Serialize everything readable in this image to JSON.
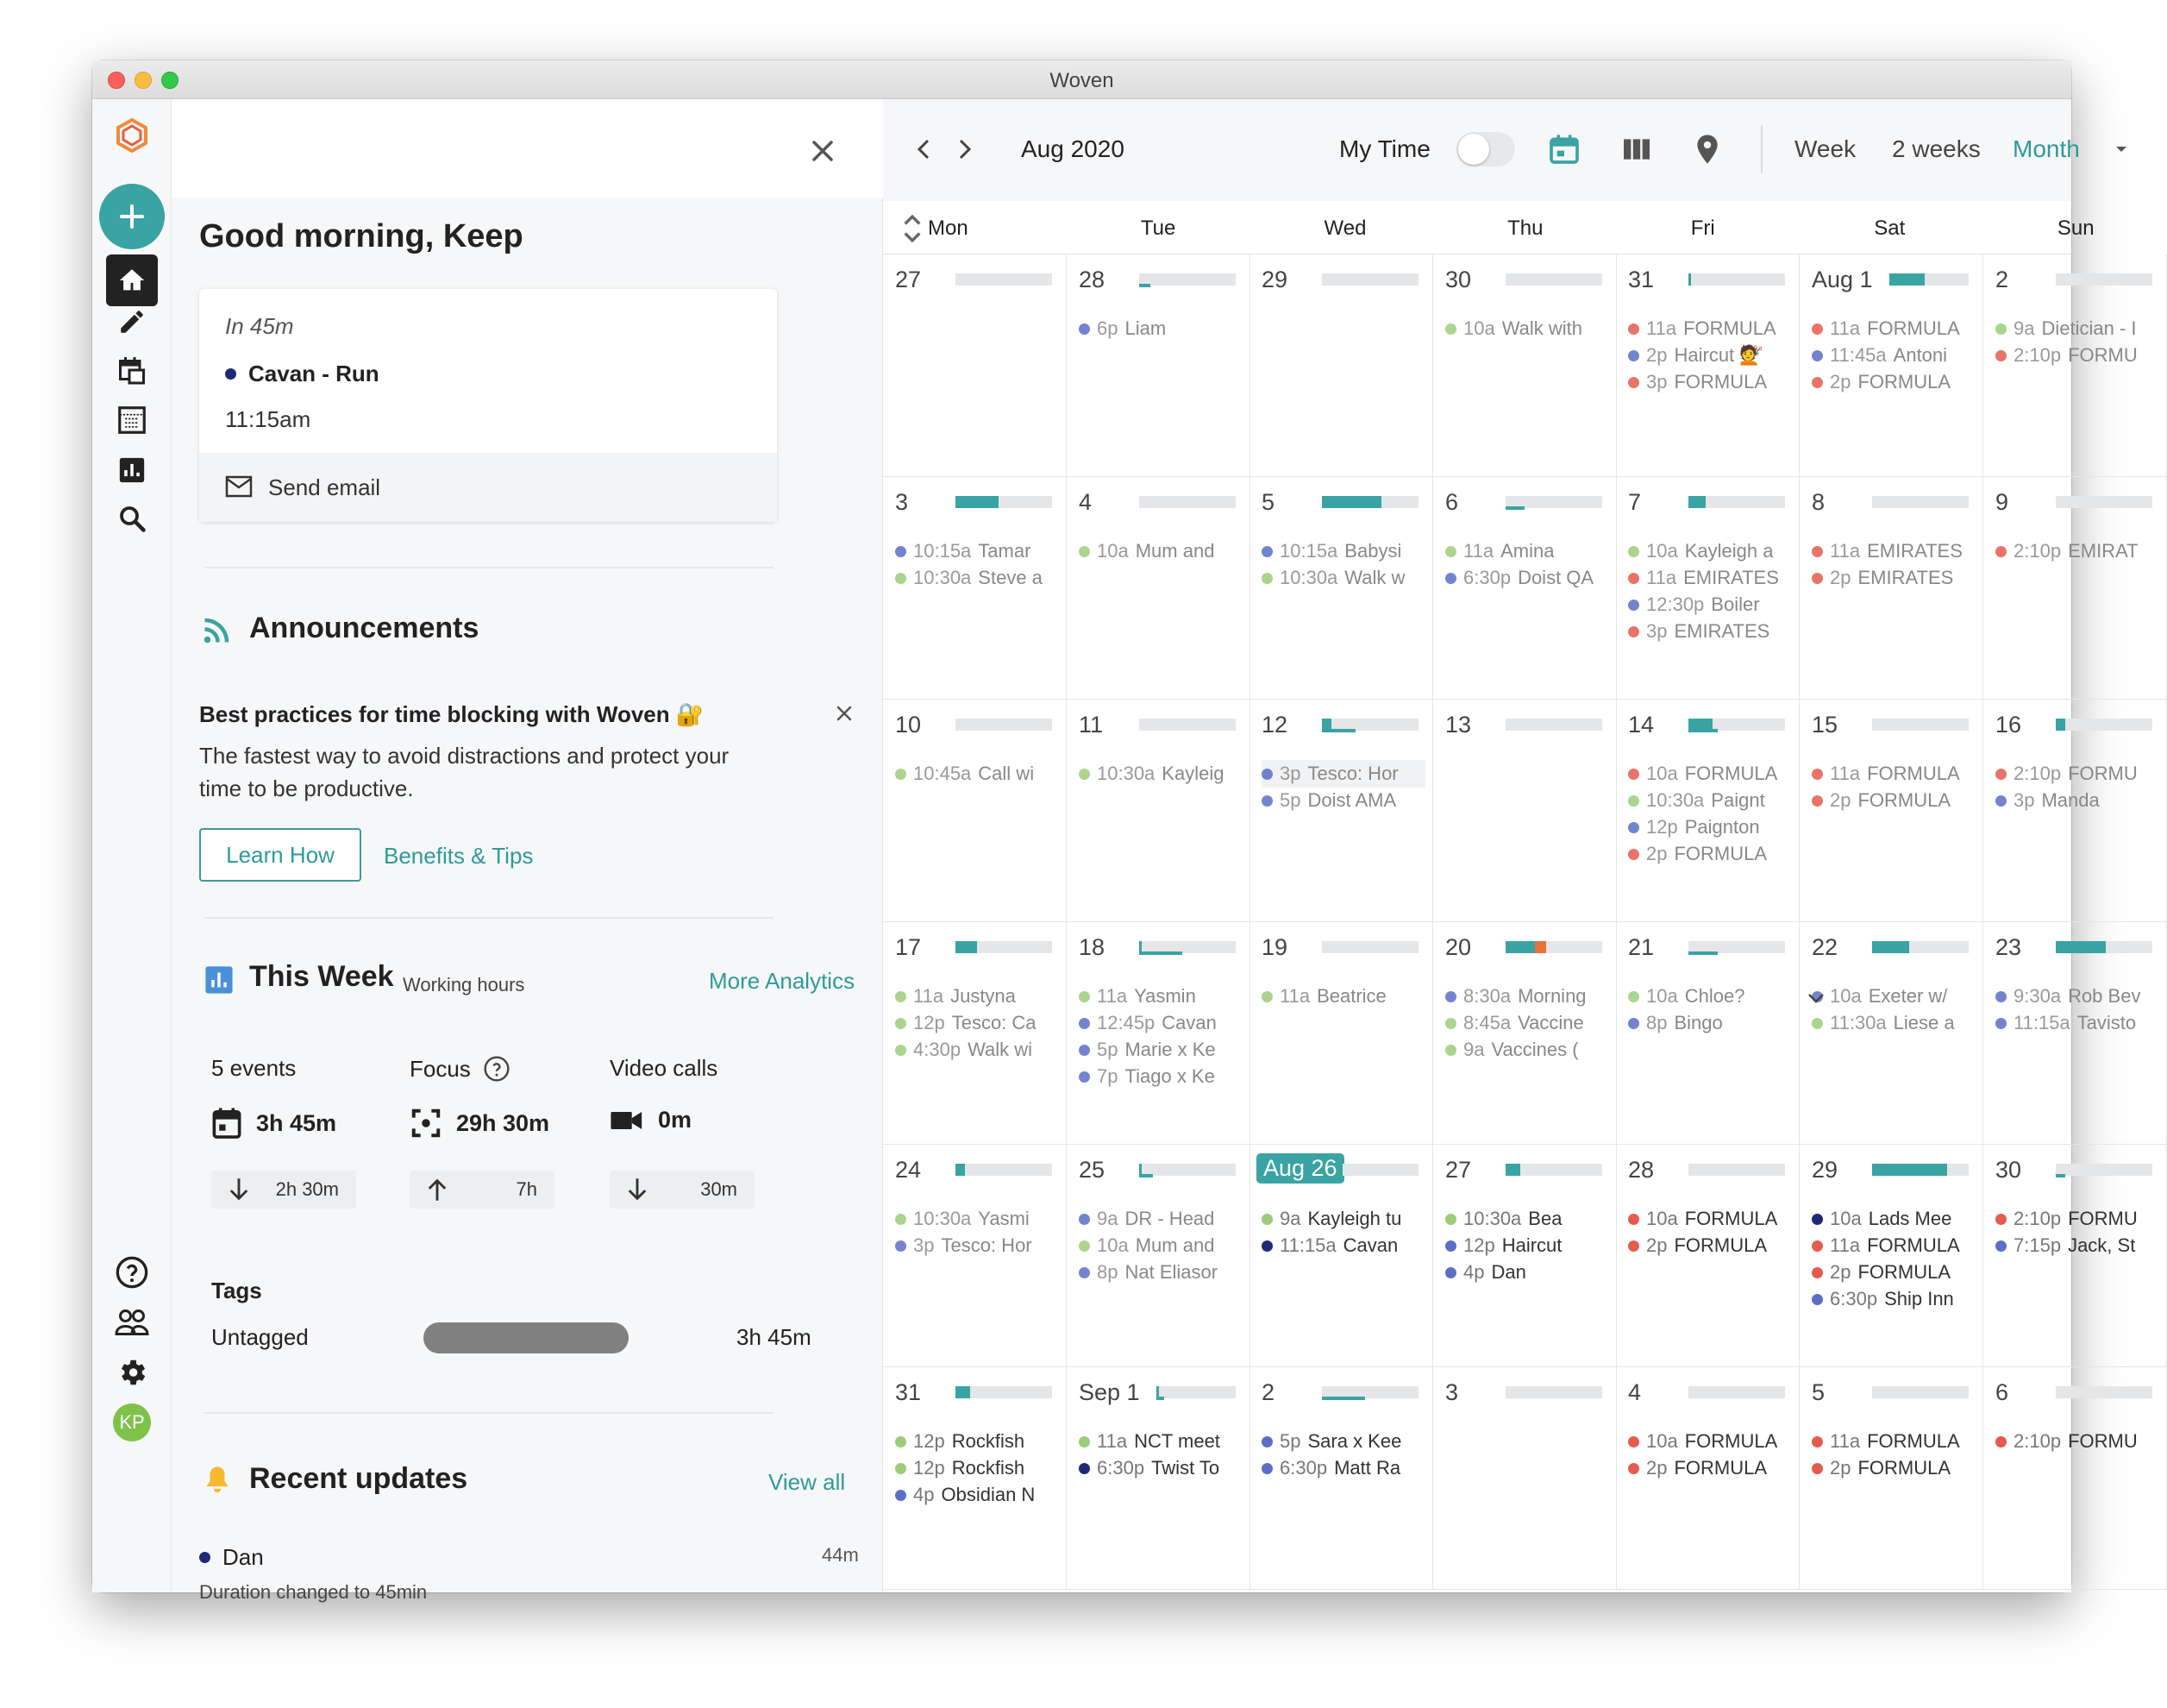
{
  "window": {
    "title": "Woven"
  },
  "colors": {
    "accent": "#3aa3a3",
    "green": "#9ccc7a",
    "blue": "#5b6fc6",
    "red": "#e55b4d",
    "navy": "#1e2a78"
  },
  "greeting": "Good morning, Keep",
  "next_event": {
    "in_label": "In 45m",
    "title": "Cavan - Run",
    "time": "11:15am",
    "action": "Send email"
  },
  "announcements": {
    "title": "Announcements",
    "headline": "Best practices for time blocking with Woven 🔐",
    "body": "The fastest way to avoid distractions and protect your time to be productive.",
    "learn_label": "Learn How",
    "tips_label": "Benefits & Tips"
  },
  "this_week": {
    "title": "This Week",
    "subtitle": "Working hours",
    "more_label": "More Analytics",
    "stats": [
      {
        "label": "5 events",
        "value": "3h 45m",
        "delta": "2h 30m",
        "dir": "down"
      },
      {
        "label": "Focus",
        "value": "29h 30m",
        "delta": "7h",
        "dir": "up"
      },
      {
        "label": "Video calls",
        "value": "0m",
        "delta": "30m",
        "dir": "down"
      }
    ],
    "tags_title": "Tags",
    "tag": {
      "name": "Untagged",
      "value": "3h 45m",
      "fraction": 1.0
    }
  },
  "recent_updates": {
    "title": "Recent updates",
    "view_all": "View all",
    "items": [
      {
        "name": "Dan",
        "time": "44m",
        "desc": "Duration changed to 45min"
      }
    ]
  },
  "calendar": {
    "month_label": "Aug 2020",
    "my_time_label": "My Time",
    "views": [
      "Week",
      "2 weeks",
      "Month"
    ],
    "active_view": "Month",
    "weekdays": [
      "Mon",
      "Tue",
      "Wed",
      "Thu",
      "Fri",
      "Sat",
      "Sun"
    ],
    "weeks": [
      [
        {
          "date": "27",
          "fill": 0,
          "events": []
        },
        {
          "date": "28",
          "fill": 0,
          "line": 0.12,
          "events": [
            {
              "c": "blue",
              "t": "6p",
              "x": "Liam",
              "f": true
            }
          ]
        },
        {
          "date": "29",
          "fill": 0,
          "events": []
        },
        {
          "date": "30",
          "fill": 0,
          "events": [
            {
              "c": "green",
              "t": "10a",
              "x": "Walk with",
              "f": true
            }
          ]
        },
        {
          "date": "31",
          "fill": 0.03,
          "events": [
            {
              "c": "red",
              "t": "11a",
              "x": "FORMULA",
              "f": true
            },
            {
              "c": "blue",
              "t": "2p",
              "x": "Haircut 💇",
              "f": true
            },
            {
              "c": "red",
              "t": "3p",
              "x": "FORMULA",
              "f": true
            }
          ]
        },
        {
          "date": "Aug 1",
          "fill": 0.45,
          "events": [
            {
              "c": "red",
              "t": "11a",
              "x": "FORMULA",
              "f": true
            },
            {
              "c": "blue",
              "t": "11:45a",
              "x": "Antoni",
              "f": true
            },
            {
              "c": "red",
              "t": "2p",
              "x": "FORMULA",
              "f": true
            }
          ]
        },
        {
          "date": "2",
          "fill": 0,
          "events": [
            {
              "c": "green",
              "t": "9a",
              "x": "Dietician - I",
              "f": true
            },
            {
              "c": "red",
              "t": "2:10p",
              "x": "FORMU",
              "f": true
            }
          ]
        }
      ],
      [
        {
          "date": "3",
          "fill": 0.45,
          "events": [
            {
              "c": "blue",
              "t": "10:15a",
              "x": "Tamar",
              "f": true
            },
            {
              "c": "green",
              "t": "10:30a",
              "x": "Steve a",
              "f": true
            }
          ]
        },
        {
          "date": "4",
          "fill": 0,
          "events": [
            {
              "c": "green",
              "t": "10a",
              "x": "Mum and",
              "f": true
            }
          ]
        },
        {
          "date": "5",
          "fill": 0.62,
          "events": [
            {
              "c": "blue",
              "t": "10:15a",
              "x": "Babysi",
              "f": true
            },
            {
              "c": "green",
              "t": "10:30a",
              "x": "Walk w",
              "f": true
            }
          ]
        },
        {
          "date": "6",
          "fill": 0,
          "line": 0.2,
          "events": [
            {
              "c": "green",
              "t": "11a",
              "x": "Amina",
              "f": true
            },
            {
              "c": "blue",
              "t": "6:30p",
              "x": "Doist QA",
              "f": true
            }
          ]
        },
        {
          "date": "7",
          "fill": 0.18,
          "events": [
            {
              "c": "green",
              "t": "10a",
              "x": "Kayleigh a",
              "f": true
            },
            {
              "c": "red",
              "t": "11a",
              "x": "EMIRATES",
              "f": true
            },
            {
              "c": "blue",
              "t": "12:30p",
              "x": "Boiler",
              "f": true
            },
            {
              "c": "red",
              "t": "3p",
              "x": "EMIRATES",
              "f": true
            }
          ]
        },
        {
          "date": "8",
          "fill": 0,
          "events": [
            {
              "c": "red",
              "t": "11a",
              "x": "EMIRATES",
              "f": true
            },
            {
              "c": "red",
              "t": "2p",
              "x": "EMIRATES",
              "f": true
            }
          ]
        },
        {
          "date": "9",
          "fill": 0,
          "events": [
            {
              "c": "red",
              "t": "2:10p",
              "x": "EMIRAT",
              "f": true
            }
          ]
        }
      ],
      [
        {
          "date": "10",
          "fill": 0,
          "events": [
            {
              "c": "green",
              "t": "10:45a",
              "x": "Call wi",
              "f": true
            }
          ]
        },
        {
          "date": "11",
          "fill": 0,
          "events": [
            {
              "c": "green",
              "t": "10:30a",
              "x": "Kayleig",
              "f": true
            }
          ]
        },
        {
          "date": "12",
          "fill": 0.1,
          "line": 0.35,
          "events": [
            {
              "c": "blue",
              "t": "3p",
              "x": "Tesco: Hor",
              "f": true,
              "h": true
            },
            {
              "c": "blue",
              "t": "5p",
              "x": "Doist AMA",
              "f": true
            }
          ]
        },
        {
          "date": "13",
          "fill": 0,
          "events": []
        },
        {
          "date": "14",
          "fill": 0.25,
          "line": 0.3,
          "events": [
            {
              "c": "red",
              "t": "10a",
              "x": "FORMULA",
              "f": true
            },
            {
              "c": "green",
              "t": "10:30a",
              "x": "Paignt",
              "f": true
            },
            {
              "c": "blue",
              "t": "12p",
              "x": "Paignton",
              "f": true
            },
            {
              "c": "red",
              "t": "2p",
              "x": "FORMULA",
              "f": true
            }
          ]
        },
        {
          "date": "15",
          "fill": 0,
          "events": [
            {
              "c": "red",
              "t": "11a",
              "x": "FORMULA",
              "f": true
            },
            {
              "c": "red",
              "t": "2p",
              "x": "FORMULA",
              "f": true
            }
          ]
        },
        {
          "date": "16",
          "fill": 0.1,
          "events": [
            {
              "c": "red",
              "t": "2:10p",
              "x": "FORMU",
              "f": true
            },
            {
              "c": "blue",
              "t": "3p",
              "x": "Manda",
              "f": true
            }
          ]
        }
      ],
      [
        {
          "date": "17",
          "fill": 0.22,
          "events": [
            {
              "c": "green",
              "t": "11a",
              "x": "Justyna",
              "f": true
            },
            {
              "c": "green",
              "t": "12p",
              "x": "Tesco: Ca",
              "f": true
            },
            {
              "c": "green",
              "t": "4:30p",
              "x": "Walk wi",
              "f": true
            }
          ]
        },
        {
          "date": "18",
          "fill": 0.03,
          "line": 0.45,
          "events": [
            {
              "c": "green",
              "t": "11a",
              "x": "Yasmin",
              "f": true
            },
            {
              "c": "blue",
              "t": "12:45p",
              "x": "Cavan",
              "f": true
            },
            {
              "c": "blue",
              "t": "5p",
              "x": "Marie x Ke",
              "f": true
            },
            {
              "c": "blue",
              "t": "7p",
              "x": "Tiago x Ke",
              "f": true
            }
          ]
        },
        {
          "date": "19",
          "fill": 0,
          "events": [
            {
              "c": "green",
              "t": "11a",
              "x": "Beatrice",
              "f": true
            }
          ]
        },
        {
          "date": "20",
          "fill": 0.3,
          "orange": 0.12,
          "events": [
            {
              "c": "blue",
              "t": "8:30a",
              "x": "Morning",
              "f": true
            },
            {
              "c": "green",
              "t": "8:45a",
              "x": "Vaccine",
              "f": true
            },
            {
              "c": "green",
              "t": "9a",
              "x": "Vaccines (",
              "f": true
            }
          ]
        },
        {
          "date": "21",
          "fill": 0,
          "line": 0.3,
          "events": [
            {
              "c": "green",
              "t": "10a",
              "x": "Chloe?",
              "f": true
            },
            {
              "c": "blue",
              "t": "8p",
              "x": "Bingo",
              "f": true
            }
          ]
        },
        {
          "date": "22",
          "fill": 0.38,
          "events": [
            {
              "c": "blue",
              "t": "10a",
              "x": "Exeter w/",
              "f": true
            },
            {
              "c": "green",
              "t": "11:30a",
              "x": "Liese a",
              "f": true
            }
          ]
        },
        {
          "date": "23",
          "fill": 0.52,
          "events": [
            {
              "c": "blue",
              "t": "9:30a",
              "x": "Rob Bev",
              "f": true
            },
            {
              "c": "blue",
              "t": "11:15a",
              "x": "Tavisto",
              "f": true
            }
          ]
        }
      ],
      [
        {
          "date": "24",
          "fill": 0.1,
          "events": [
            {
              "c": "green",
              "t": "10:30a",
              "x": "Yasmi",
              "f": true
            },
            {
              "c": "blue",
              "t": "3p",
              "x": "Tesco: Hor",
              "f": true
            }
          ]
        },
        {
          "date": "25",
          "fill": 0.03,
          "line": 0.14,
          "events": [
            {
              "c": "blue",
              "t": "9a",
              "x": "DR - Head",
              "f": true
            },
            {
              "c": "green",
              "t": "10a",
              "x": "Mum and",
              "f": true
            },
            {
              "c": "blue",
              "t": "8p",
              "x": "Nat Eliasor",
              "f": true
            }
          ]
        },
        {
          "date": "Aug 26",
          "today": true,
          "fill": 0.04,
          "events": [
            {
              "c": "green",
              "t": "9a",
              "x": "Kayleigh tu",
              "f": false
            },
            {
              "c": "navy",
              "t": "11:15a",
              "x": "Cavan",
              "f": false
            }
          ]
        },
        {
          "date": "27",
          "fill": 0.15,
          "events": [
            {
              "c": "green",
              "t": "10:30a",
              "x": "Bea",
              "f": false
            },
            {
              "c": "blue",
              "t": "12p",
              "x": "Haircut",
              "f": false
            },
            {
              "c": "blue",
              "t": "4p",
              "x": "Dan",
              "f": false
            }
          ]
        },
        {
          "date": "28",
          "fill": 0,
          "events": [
            {
              "c": "red",
              "t": "10a",
              "x": "FORMULA",
              "f": false
            },
            {
              "c": "red",
              "t": "2p",
              "x": "FORMULA",
              "f": false
            }
          ]
        },
        {
          "date": "29",
          "fill": 0.78,
          "events": [
            {
              "c": "navy",
              "t": "10a",
              "x": "Lads Mee",
              "f": false
            },
            {
              "c": "red",
              "t": "11a",
              "x": "FORMULA",
              "f": false
            },
            {
              "c": "red",
              "t": "2p",
              "x": "FORMULA",
              "f": false
            },
            {
              "c": "blue",
              "t": "6:30p",
              "x": "Ship Inn",
              "f": false
            }
          ]
        },
        {
          "date": "30",
          "fill": 0,
          "line": 0.1,
          "events": [
            {
              "c": "red",
              "t": "2:10p",
              "x": "FORMU",
              "f": false
            },
            {
              "c": "blue",
              "t": "7:15p",
              "x": "Jack, St",
              "f": false
            }
          ]
        }
      ],
      [
        {
          "date": "31",
          "fill": 0.15,
          "events": [
            {
              "c": "green",
              "t": "12p",
              "x": "Rockfish",
              "f": false
            },
            {
              "c": "green",
              "t": "12p",
              "x": "Rockfish",
              "f": false
            },
            {
              "c": "blue",
              "t": "4p",
              "x": "Obsidian N",
              "f": false
            }
          ]
        },
        {
          "date": "Sep 1",
          "fill": 0.03,
          "line": 0.1,
          "events": [
            {
              "c": "green",
              "t": "11a",
              "x": "NCT meet",
              "f": false
            },
            {
              "c": "navy",
              "t": "6:30p",
              "x": "Twist To",
              "f": false
            }
          ]
        },
        {
          "date": "2",
          "fill": 0,
          "line": 0.45,
          "events": [
            {
              "c": "blue",
              "t": "5p",
              "x": "Sara x Kee",
              "f": false
            },
            {
              "c": "blue",
              "t": "6:30p",
              "x": "Matt Ra",
              "f": false
            }
          ]
        },
        {
          "date": "3",
          "fill": 0,
          "events": []
        },
        {
          "date": "4",
          "fill": 0,
          "events": [
            {
              "c": "red",
              "t": "10a",
              "x": "FORMULA",
              "f": false
            },
            {
              "c": "red",
              "t": "2p",
              "x": "FORMULA",
              "f": false
            }
          ]
        },
        {
          "date": "5",
          "fill": 0,
          "events": [
            {
              "c": "red",
              "t": "11a",
              "x": "FORMULA",
              "f": false
            },
            {
              "c": "red",
              "t": "2p",
              "x": "FORMULA",
              "f": false
            }
          ]
        },
        {
          "date": "6",
          "fill": 0,
          "events": [
            {
              "c": "red",
              "t": "2:10p",
              "x": "FORMU",
              "f": false
            }
          ]
        }
      ]
    ]
  },
  "user": {
    "initials": "KP"
  }
}
